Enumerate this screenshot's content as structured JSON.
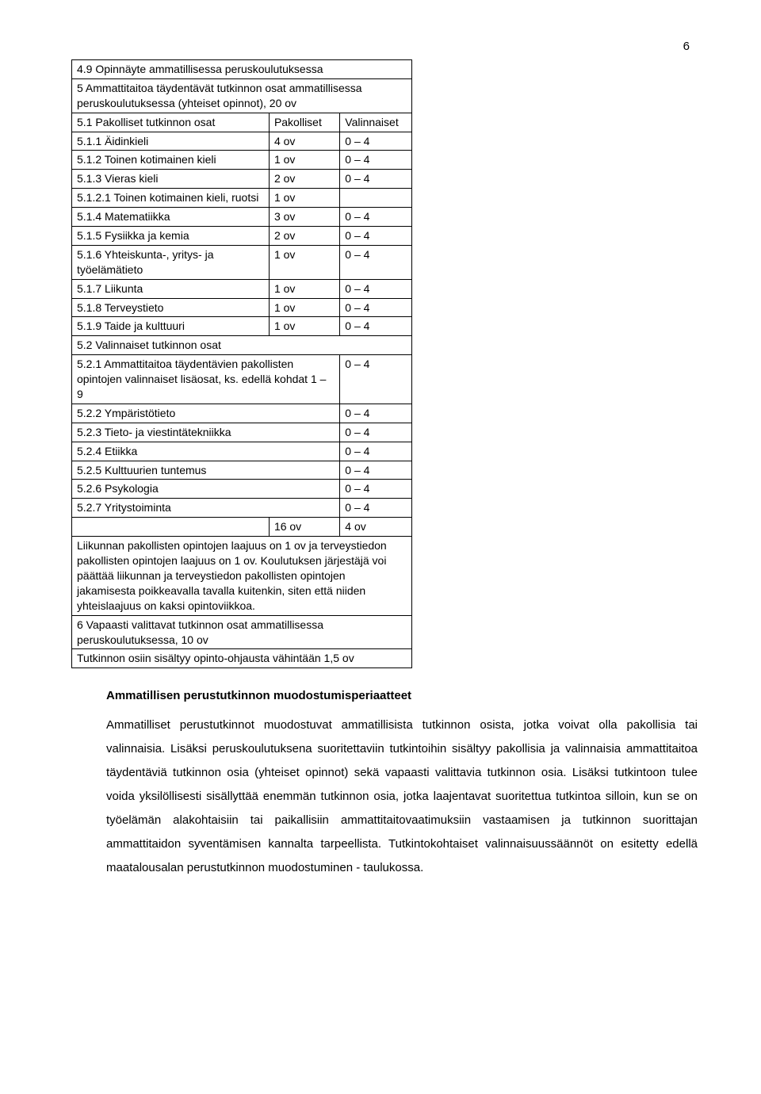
{
  "page_number": "6",
  "table": {
    "rows": [
      {
        "label": "4.9 Opinnäyte ammatillisessa peruskoulutuksessa",
        "c1": "",
        "c2": "",
        "span": 3
      },
      {
        "label": "5 Ammattitaitoa täydentävät tutkinnon osat ammatillisessa peruskoulutuksessa (yhteiset opinnot), 20 ov",
        "c1": "",
        "c2": "",
        "span": 3
      },
      {
        "label": "5.1 Pakolliset tutkinnon osat",
        "c1": "Pakolliset",
        "c2": "Valinnaiset"
      },
      {
        "label": "5.1.1 Äidinkieli",
        "c1": "4 ov",
        "c2": "0 – 4"
      },
      {
        "label": "5.1.2 Toinen kotimainen kieli",
        "c1": "1 ov",
        "c2": "0 – 4"
      },
      {
        "label": "5.1.3 Vieras kieli",
        "c1": "2 ov",
        "c2": "0 – 4"
      },
      {
        "label": "5.1.2.1 Toinen kotimainen kieli, ruotsi",
        "c1": "1 ov",
        "c2": ""
      },
      {
        "label": "5.1.4 Matematiikka",
        "c1": "3 ov",
        "c2": "0 – 4"
      },
      {
        "label": "5.1.5 Fysiikka ja kemia",
        "c1": "2 ov",
        "c2": "0 – 4"
      },
      {
        "label": "5.1.6 Yhteiskunta-, yritys- ja työelämätieto",
        "c1": "1 ov",
        "c2": "0 – 4"
      },
      {
        "label": "5.1.7 Liikunta",
        "c1": "1 ov",
        "c2": "0 – 4"
      },
      {
        "label": "5.1.8 Terveystieto",
        "c1": "1 ov",
        "c2": "0 – 4"
      },
      {
        "label": "5.1.9 Taide ja kulttuuri",
        "c1": "1 ov",
        "c2": "0 – 4"
      },
      {
        "label": "5.2 Valinnaiset tutkinnon osat",
        "c1": "",
        "c2": "",
        "span": 3
      },
      {
        "label": "5.2.1 Ammattitaitoa täydentävien pakollisten opintojen valinnaiset lisäosat, ks. edellä kohdat 1 – 9",
        "c1": "",
        "c2": "0 – 4",
        "span12": true
      },
      {
        "label": "5.2.2 Ympäristötieto",
        "c1": "",
        "c2": "0 – 4",
        "span12": true
      },
      {
        "label": "5.2.3 Tieto- ja viestintätekniikka",
        "c1": "",
        "c2": "0 – 4",
        "span12": true
      },
      {
        "label": "5.2.4 Etiikka",
        "c1": "",
        "c2": "0 – 4",
        "span12": true
      },
      {
        "label": "5.2.5 Kulttuurien tuntemus",
        "c1": "",
        "c2": "0 – 4",
        "span12": true
      },
      {
        "label": "5.2.6 Psykologia",
        "c1": "",
        "c2": "0 – 4",
        "span12": true
      },
      {
        "label": "5.2.7 Yritystoiminta",
        "c1": "",
        "c2": "0 – 4",
        "span12": true
      },
      {
        "label": "",
        "c1": "16 ov",
        "c2": "4 ov"
      },
      {
        "label": "Liikunnan pakollisten opintojen laajuus on 1 ov ja terveystiedon pakollisten opintojen laajuus on 1 ov. Koulutuksen järjestäjä voi päättää liikunnan ja terveystiedon pakollisten opintojen jakamisesta poikkeavalla tavalla kuitenkin, siten että niiden yhteislaajuus on kaksi opintoviikkoa.",
        "span": 3
      },
      {
        "label": "6 Vapaasti valittavat tutkinnon osat ammatillisessa peruskoulutuksessa, 10 ov",
        "span": 3
      },
      {
        "label": "Tutkinnon osiin sisältyy opinto-ohjausta vähintään 1,5 ov",
        "span": 3
      }
    ]
  },
  "heading": "Ammatillisen perustutkinnon muodostumisperiaatteet",
  "paragraphs": [
    "Ammatilliset perustutkinnot muodostuvat ammatillisista tutkinnon osista, jotka voivat olla pakollisia tai valinnaisia. Lisäksi peruskoulutuksena suoritettaviin tutkintoihin sisältyy pakollisia ja valinnaisia ammattitaitoa täydentäviä tutkinnon osia (yhteiset opinnot) sekä vapaasti valittavia tutkinnon osia. Lisäksi tutkintoon tulee voida yksilöllisesti sisällyttää enemmän tutkinnon osia, jotka laajentavat suoritettua tutkintoa silloin, kun se on työelämän alakohtaisiin tai paikallisiin ammattitaitovaatimuksiin vastaamisen ja tutkinnon suorittajan ammattitaidon syventämisen kannalta tarpeellista. Tutkintokohtaiset valinnaisuussäännöt on esitetty edellä maatalousalan perustutkinnon muodostuminen - taulukossa."
  ]
}
